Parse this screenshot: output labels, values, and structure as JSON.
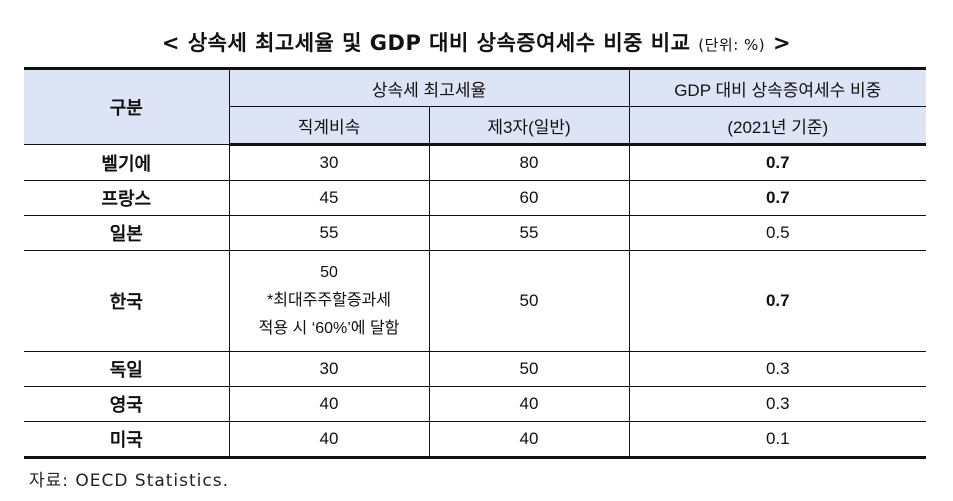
{
  "title": {
    "main": "< 상속세 최고세율 및 GDP 대비 상속증여세수 비중 비교",
    "unit": "(단위: %)",
    "close": " >"
  },
  "table": {
    "headers": {
      "category": "구분",
      "top_rate_group": "상속세 최고세율",
      "direct_descendant": "직계비속",
      "third_party": "제3자(일반)",
      "gdp_share_line1": "GDP 대비 상속증여세수 비중",
      "gdp_share_line2": "(2021년 기준)"
    },
    "rows": [
      {
        "country": "벨기에",
        "direct": "30",
        "third": "80",
        "gdp": "0.7"
      },
      {
        "country": "프랑스",
        "direct": "45",
        "third": "60",
        "gdp": "0.7"
      },
      {
        "country": "일본",
        "direct": "55",
        "third": "55",
        "gdp": "0.5"
      },
      {
        "country": "한국",
        "direct": "50",
        "direct_note1": "*최대주주할증과세",
        "direct_note2": "적용 시 ‘60%’에 달함",
        "third": "50",
        "gdp": "0.7"
      },
      {
        "country": "독일",
        "direct": "30",
        "third": "50",
        "gdp": "0.3"
      },
      {
        "country": "영국",
        "direct": "40",
        "third": "40",
        "gdp": "0.3"
      },
      {
        "country": "미국",
        "direct": "40",
        "third": "40",
        "gdp": "0.1"
      }
    ]
  },
  "source": "자료: OECD Statistics.",
  "colors": {
    "header_bg": "#dde4f5",
    "border": "#111111"
  }
}
